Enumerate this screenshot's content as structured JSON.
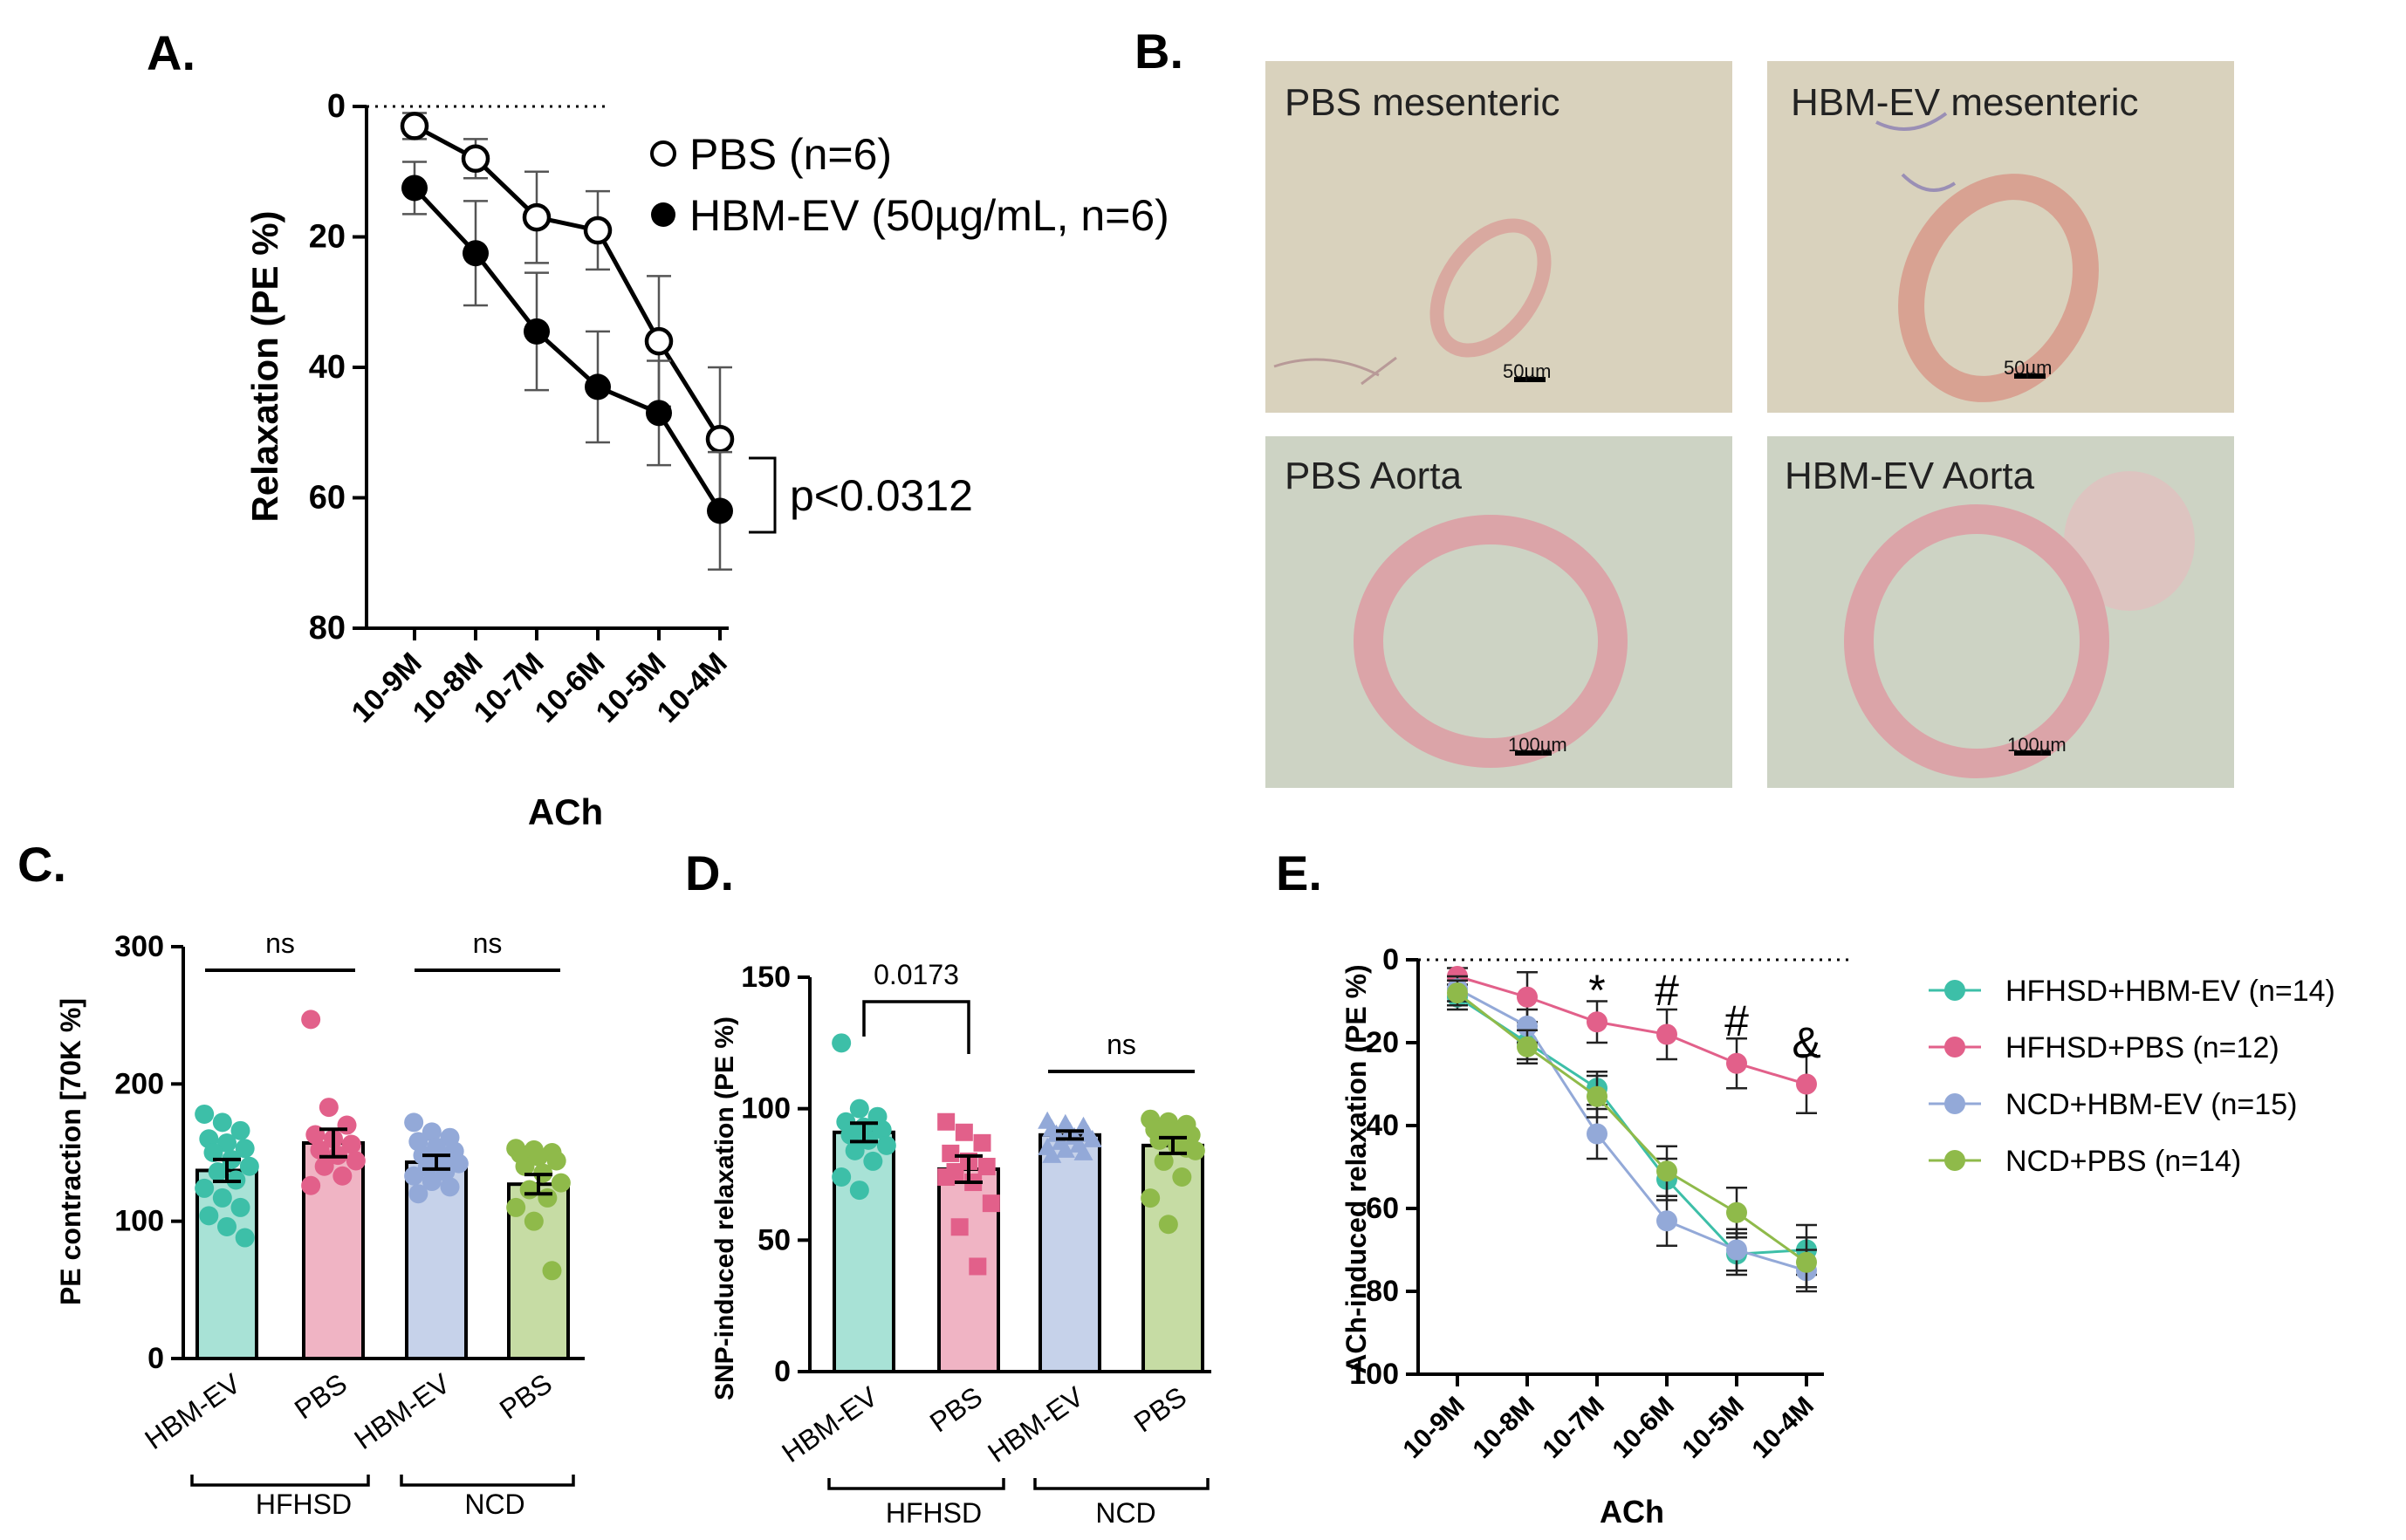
{
  "panels": {
    "A": {
      "label": "A.",
      "chart_data": {
        "type": "line",
        "x": [
          "10-9M",
          "10-8M",
          "10-7M",
          "10-6M",
          "10-5M",
          "10-4M"
        ],
        "xlabel": "ACh",
        "ylabel": "Relaxation (PE %)",
        "ylim": [
          0,
          80
        ],
        "yticks": [
          0,
          20,
          40,
          60,
          80
        ],
        "y_inverted": true,
        "series": [
          {
            "name": "PBS (n=6)",
            "marker": "open-circle",
            "color": "#000000",
            "values": [
              3,
              8,
              17,
              19,
              36,
              51
            ],
            "err": [
              2,
              3,
              7,
              6,
              10,
              11
            ]
          },
          {
            "name": "HBM-EV (50µg/mL, n=6)",
            "marker": "filled-circle",
            "color": "#000000",
            "values": [
              12.5,
              22.5,
              34.5,
              43,
              47,
              62
            ],
            "err": [
              4,
              8,
              9,
              8.5,
              8,
              9
            ]
          }
        ],
        "annotation": "p<0.0312"
      }
    },
    "B": {
      "label": "B.",
      "images": [
        {
          "caption": "PBS mesenteric",
          "scale": "50µm"
        },
        {
          "caption": "HBM-EV mesenteric",
          "scale": "50µm"
        },
        {
          "caption": "PBS Aorta",
          "scale": "100µm"
        },
        {
          "caption": "HBM-EV Aorta",
          "scale": "100µm"
        }
      ]
    },
    "C": {
      "label": "C.",
      "chart_data": {
        "type": "bar",
        "categories": [
          "HBM-EV",
          "PBS",
          "HBM-EV",
          "PBS"
        ],
        "groups": [
          {
            "name": "HFHSD",
            "members": [
              0,
              1
            ]
          },
          {
            "name": "NCD",
            "members": [
              2,
              3
            ]
          }
        ],
        "ylabel": "PE contraction [70K %]",
        "ylim": [
          0,
          300
        ],
        "yticks": [
          0,
          100,
          200,
          300
        ],
        "values": [
          137,
          157,
          143,
          127
        ],
        "sem": [
          8,
          10,
          5,
          7
        ],
        "colors": [
          "#3dbfa8",
          "#e2608a",
          "#93a9d8",
          "#8fba4a"
        ],
        "bar_colors": [
          "#a8e2d6",
          "#f0b4c4",
          "#c6d2ea",
          "#c6dca4"
        ],
        "points": [
          [
            178,
            172,
            166,
            160,
            157,
            153,
            150,
            145,
            140,
            136,
            130,
            124,
            117,
            110,
            104,
            96,
            88
          ],
          [
            247,
            183,
            170,
            163,
            160,
            156,
            152,
            148,
            144,
            140,
            133,
            126
          ],
          [
            172,
            165,
            161,
            158,
            154,
            151,
            148,
            145,
            142,
            139,
            136,
            133,
            129,
            125,
            120
          ],
          [
            153,
            152,
            150,
            149,
            147,
            144,
            140,
            135,
            128,
            123,
            117,
            110,
            100,
            64
          ]
        ],
        "comparisons": [
          {
            "between": [
              0,
              1
            ],
            "label": "ns"
          },
          {
            "between": [
              2,
              3
            ],
            "label": "ns"
          }
        ]
      }
    },
    "D": {
      "label": "D.",
      "chart_data": {
        "type": "bar",
        "categories": [
          "HBM-EV",
          "PBS",
          "HBM-EV",
          "PBS"
        ],
        "groups": [
          {
            "name": "HFHSD",
            "members": [
              0,
              1
            ]
          },
          {
            "name": "NCD",
            "members": [
              2,
              3
            ]
          }
        ],
        "ylabel": "SNP-induced relaxation (PE %)",
        "ylim": [
          0,
          150
        ],
        "yticks": [
          0,
          50,
          100,
          150
        ],
        "values": [
          91,
          77,
          90,
          86
        ],
        "sem": [
          3.5,
          5,
          1.5,
          3
        ],
        "colors": [
          "#3dbfa8",
          "#e2608a",
          "#93a9d8",
          "#8fba4a"
        ],
        "bar_colors": [
          "#a8e2d6",
          "#f0b4c4",
          "#c6d2ea",
          "#c6dca4"
        ],
        "point_markers": [
          "circle",
          "square",
          "triangle",
          "circle"
        ],
        "points": [
          [
            125,
            100,
            97,
            95,
            93,
            92,
            90,
            88,
            86,
            84,
            80,
            74,
            69
          ],
          [
            95,
            91,
            87,
            83,
            80,
            78,
            76,
            72,
            64,
            55,
            40,
            74
          ],
          [
            95,
            94,
            93,
            92,
            91,
            90,
            90,
            89,
            88,
            87,
            86,
            85,
            84,
            83,
            82
          ],
          [
            96,
            95,
            94,
            92,
            91,
            90,
            88,
            86,
            84,
            80,
            74,
            66,
            56,
            85
          ]
        ],
        "comparisons": [
          {
            "between": [
              0,
              1
            ],
            "label": "0.0173",
            "bracket": true
          },
          {
            "between": [
              2,
              3
            ],
            "label": "ns"
          }
        ]
      }
    },
    "E": {
      "label": "E.",
      "chart_data": {
        "type": "line",
        "x": [
          "10-9M",
          "10-8M",
          "10-7M",
          "10-6M",
          "10-5M",
          "10-4M"
        ],
        "xlabel": "ACh",
        "ylabel": "ACh-induced relaxation (PE %)",
        "ylim": [
          0,
          100
        ],
        "yticks": [
          0,
          20,
          40,
          60,
          80,
          100
        ],
        "y_inverted": true,
        "series": [
          {
            "name": "HFHSD+HBM-EV  (n=14)",
            "color": "#3dbfa8",
            "values": [
              9,
              20,
              31,
              53,
              71,
              70
            ],
            "err": [
              3,
              4,
              4,
              5,
              5,
              6
            ]
          },
          {
            "name": "HFHSD+PBS (n=12)",
            "color": "#e2608a",
            "values": [
              4,
              9,
              15,
              18,
              25,
              30
            ],
            "err": [
              2,
              6,
              5,
              6,
              6,
              7
            ]
          },
          {
            "name": "NCD+HBM-EV (n=15)",
            "color": "#93a9d8",
            "values": [
              7,
              16,
              42,
              63,
              70,
              75
            ],
            "err": [
              3,
              4,
              6,
              6,
              5,
              5
            ]
          },
          {
            "name": "NCD+PBS (n=14)",
            "color": "#8fba4a",
            "values": [
              8,
              21,
              33,
              51,
              61,
              73
            ],
            "err": [
              3,
              4,
              5,
              6,
              6,
              6
            ]
          }
        ],
        "significance": [
          {
            "x_index": 2,
            "label": "*"
          },
          {
            "x_index": 3,
            "label": "#"
          },
          {
            "x_index": 4,
            "label": "#"
          },
          {
            "x_index": 5,
            "label": "&"
          }
        ]
      }
    }
  }
}
